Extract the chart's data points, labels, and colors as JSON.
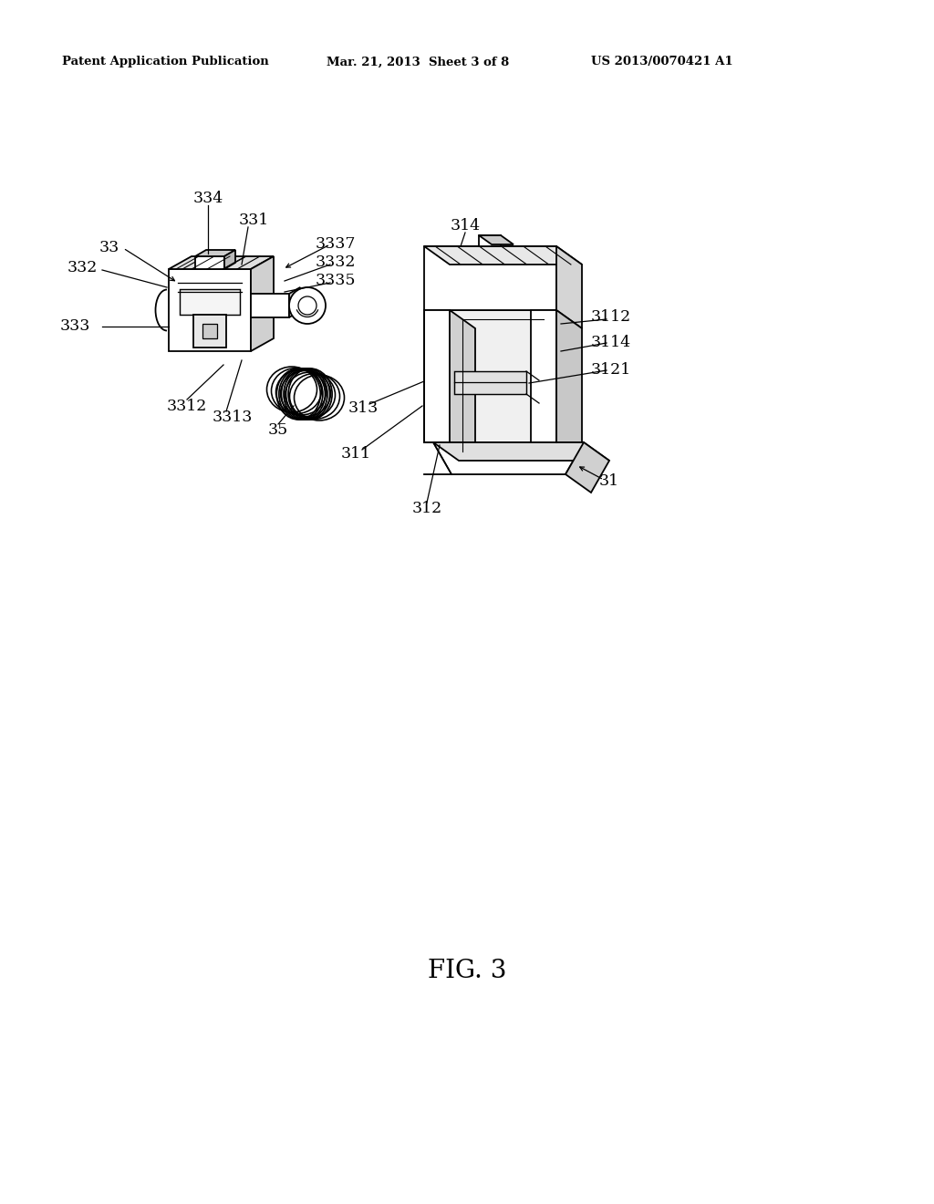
{
  "bg_color": "#ffffff",
  "header_left": "Patent Application Publication",
  "header_mid": "Mar. 21, 2013  Sheet 3 of 8",
  "header_right": "US 2013/0070421 A1",
  "fig_label": "FIG. 3",
  "lw": 1.3
}
